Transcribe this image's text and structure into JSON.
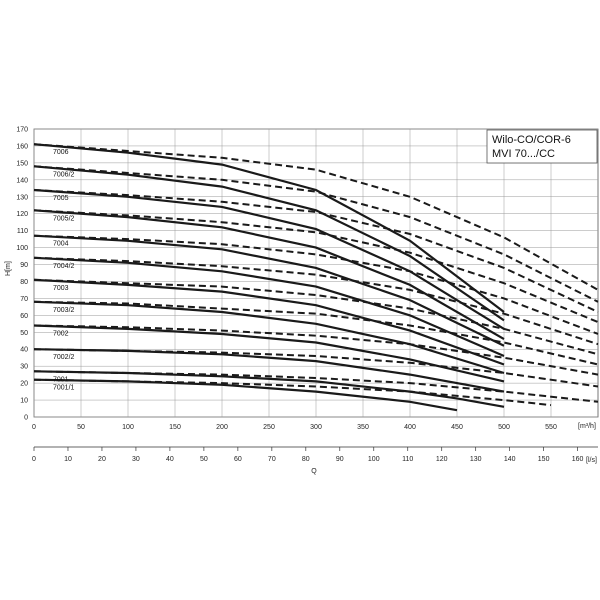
{
  "chart_data": {
    "type": "line",
    "title_lines": [
      "Wilo-CO/COR-6",
      "MVI 70.../CC"
    ],
    "ylabel": "H[m]",
    "xlabel_top_unit": "[m³/h]",
    "xlabel_bottom_unit": "[l/s]",
    "xlabel": "Q",
    "ylim": [
      0,
      170
    ],
    "xlim": [
      0,
      600
    ],
    "x_ticks_m3h": [
      0,
      50,
      100,
      150,
      200,
      250,
      300,
      350,
      400,
      450,
      500,
      550
    ],
    "x_ticks_ls": [
      0,
      10,
      20,
      30,
      40,
      50,
      60,
      70,
      80,
      90,
      100,
      110,
      120,
      130,
      140,
      150,
      160
    ],
    "y_ticks": [
      0,
      10,
      20,
      30,
      40,
      50,
      60,
      70,
      80,
      90,
      100,
      110,
      120,
      130,
      140,
      150,
      160,
      170
    ],
    "grid": true,
    "colors": {
      "solid": "#1a1a1a",
      "dashed": "#1a1a1a",
      "grid": "#9a9a9a"
    },
    "series": [
      {
        "name": "7006",
        "solid": [
          [
            0,
            161
          ],
          [
            100,
            156
          ],
          [
            200,
            149
          ],
          [
            300,
            134
          ],
          [
            400,
            104
          ],
          [
            500,
            62
          ]
        ],
        "dashed": [
          [
            0,
            161
          ],
          [
            100,
            157
          ],
          [
            200,
            153
          ],
          [
            300,
            146
          ],
          [
            400,
            130
          ],
          [
            500,
            106
          ],
          [
            600,
            75
          ]
        ]
      },
      {
        "name": "7006/2",
        "solid": [
          [
            0,
            148
          ],
          [
            100,
            143
          ],
          [
            200,
            136
          ],
          [
            300,
            122
          ],
          [
            400,
            95
          ],
          [
            500,
            57
          ]
        ],
        "dashed": [
          [
            0,
            148
          ],
          [
            100,
            144
          ],
          [
            200,
            140
          ],
          [
            300,
            133
          ],
          [
            400,
            118
          ],
          [
            500,
            96
          ],
          [
            600,
            68
          ]
        ]
      },
      {
        "name": "7005",
        "solid": [
          [
            0,
            134
          ],
          [
            100,
            130
          ],
          [
            200,
            124
          ],
          [
            300,
            111
          ],
          [
            400,
            86
          ],
          [
            500,
            52
          ]
        ],
        "dashed": [
          [
            0,
            134
          ],
          [
            100,
            131
          ],
          [
            200,
            127
          ],
          [
            300,
            121
          ],
          [
            400,
            108
          ],
          [
            500,
            88
          ],
          [
            600,
            62
          ]
        ]
      },
      {
        "name": "7005/2",
        "solid": [
          [
            0,
            122
          ],
          [
            100,
            118
          ],
          [
            200,
            112
          ],
          [
            300,
            100
          ],
          [
            400,
            78
          ],
          [
            500,
            46
          ]
        ],
        "dashed": [
          [
            0,
            122
          ],
          [
            100,
            119
          ],
          [
            200,
            115
          ],
          [
            300,
            109
          ],
          [
            400,
            97
          ],
          [
            500,
            79
          ],
          [
            600,
            56
          ]
        ]
      },
      {
        "name": "7004",
        "solid": [
          [
            0,
            107
          ],
          [
            100,
            104
          ],
          [
            200,
            99
          ],
          [
            300,
            88
          ],
          [
            400,
            69
          ],
          [
            500,
            42
          ]
        ],
        "dashed": [
          [
            0,
            107
          ],
          [
            100,
            105
          ],
          [
            200,
            102
          ],
          [
            300,
            96
          ],
          [
            400,
            86
          ],
          [
            500,
            70
          ],
          [
            600,
            49
          ]
        ]
      },
      {
        "name": "7004/2",
        "solid": [
          [
            0,
            94
          ],
          [
            100,
            91
          ],
          [
            200,
            86
          ],
          [
            300,
            77
          ],
          [
            400,
            60
          ],
          [
            500,
            36
          ]
        ],
        "dashed": [
          [
            0,
            94
          ],
          [
            100,
            92
          ],
          [
            200,
            89
          ],
          [
            300,
            84
          ],
          [
            400,
            75
          ],
          [
            500,
            61
          ],
          [
            600,
            43
          ]
        ]
      },
      {
        "name": "7003",
        "solid": [
          [
            0,
            81
          ],
          [
            100,
            78
          ],
          [
            200,
            74
          ],
          [
            300,
            66
          ],
          [
            400,
            51
          ],
          [
            500,
            31
          ]
        ],
        "dashed": [
          [
            0,
            81
          ],
          [
            100,
            79
          ],
          [
            200,
            77
          ],
          [
            300,
            72
          ],
          [
            400,
            64
          ],
          [
            500,
            52
          ],
          [
            600,
            37
          ]
        ]
      },
      {
        "name": "7003/2",
        "solid": [
          [
            0,
            68
          ],
          [
            100,
            66
          ],
          [
            200,
            62
          ],
          [
            300,
            55
          ],
          [
            400,
            43
          ],
          [
            500,
            26
          ]
        ],
        "dashed": [
          [
            0,
            68
          ],
          [
            100,
            67
          ],
          [
            200,
            64
          ],
          [
            300,
            61
          ],
          [
            400,
            54
          ],
          [
            500,
            44
          ],
          [
            600,
            31
          ]
        ]
      },
      {
        "name": "7002",
        "solid": [
          [
            0,
            54
          ],
          [
            100,
            52
          ],
          [
            200,
            49
          ],
          [
            300,
            44
          ],
          [
            400,
            34
          ],
          [
            500,
            21
          ]
        ],
        "dashed": [
          [
            0,
            54
          ],
          [
            100,
            53
          ],
          [
            200,
            51
          ],
          [
            300,
            48
          ],
          [
            400,
            43
          ],
          [
            500,
            35
          ],
          [
            600,
            25
          ]
        ]
      },
      {
        "name": "7002/2",
        "solid": [
          [
            0,
            40
          ],
          [
            100,
            39
          ],
          [
            200,
            37
          ],
          [
            300,
            33
          ],
          [
            400,
            25
          ],
          [
            500,
            15
          ]
        ],
        "dashed": [
          [
            0,
            40
          ],
          [
            100,
            39
          ],
          [
            200,
            38
          ],
          [
            300,
            36
          ],
          [
            400,
            32
          ],
          [
            500,
            26
          ],
          [
            600,
            18
          ]
        ]
      },
      {
        "name": "7001",
        "solid": [
          [
            0,
            27
          ],
          [
            100,
            26
          ],
          [
            200,
            24
          ],
          [
            300,
            21
          ],
          [
            400,
            15
          ],
          [
            450,
            11
          ],
          [
            500,
            6
          ]
        ],
        "dashed": [
          [
            0,
            27
          ],
          [
            100,
            26
          ],
          [
            200,
            25
          ],
          [
            300,
            23
          ],
          [
            400,
            20
          ],
          [
            500,
            15
          ],
          [
            600,
            9
          ]
        ]
      },
      {
        "name": "7001/1",
        "solid": [
          [
            0,
            22
          ],
          [
            100,
            21
          ],
          [
            200,
            19
          ],
          [
            300,
            15
          ],
          [
            400,
            9
          ],
          [
            450,
            4
          ]
        ],
        "dashed": [
          [
            0,
            22
          ],
          [
            100,
            21
          ],
          [
            200,
            20
          ],
          [
            300,
            18
          ],
          [
            400,
            15
          ],
          [
            500,
            10
          ],
          [
            550,
            7
          ]
        ]
      }
    ]
  }
}
